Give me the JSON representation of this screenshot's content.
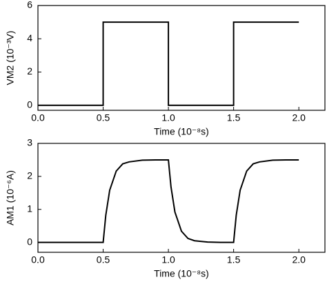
{
  "chart_data": [
    {
      "type": "line",
      "x_label": "Time (10⁻⁸s)",
      "y_label": "VM2 (10⁻³V)",
      "color": "#000000",
      "x": [
        0,
        0.5,
        0.5,
        1.0,
        1.0,
        1.5,
        1.5,
        2.0
      ],
      "values": [
        0,
        0,
        5,
        5,
        0,
        0,
        5,
        5
      ],
      "xlim": [
        0,
        2.2
      ],
      "ylim": [
        -0.3,
        6
      ],
      "xticks": [
        {
          "value": 0,
          "label": "0.0"
        },
        {
          "value": 0.5,
          "label": "0.5"
        },
        {
          "value": 1,
          "label": "1.0"
        },
        {
          "value": 1.5,
          "label": "1.5"
        },
        {
          "value": 2,
          "label": "2.0"
        }
      ],
      "yticks": [
        0,
        2,
        4,
        6
      ]
    },
    {
      "type": "line",
      "x_label": "Time (10⁻⁸s)",
      "y_label": "AM1 (10⁻⁶A)",
      "color": "#000000",
      "x": [
        0,
        0.5,
        0.52,
        0.55,
        0.6,
        0.65,
        0.7,
        0.8,
        0.9,
        1.0,
        1.02,
        1.05,
        1.1,
        1.15,
        1.2,
        1.3,
        1.4,
        1.5,
        1.52,
        1.55,
        1.6,
        1.65,
        1.7,
        1.8,
        1.9,
        2.0
      ],
      "values": [
        0,
        0,
        0.82,
        1.58,
        2.16,
        2.38,
        2.44,
        2.49,
        2.5,
        2.5,
        1.68,
        0.92,
        0.34,
        0.12,
        0.05,
        0.01,
        0,
        0,
        0.82,
        1.58,
        2.16,
        2.38,
        2.44,
        2.49,
        2.5,
        2.5
      ],
      "xlim": [
        0,
        2.2
      ],
      "ylim": [
        -0.3,
        3
      ],
      "xticks": [
        {
          "value": 0,
          "label": "0.0"
        },
        {
          "value": 0.5,
          "label": "0.5"
        },
        {
          "value": 1,
          "label": "1.0"
        },
        {
          "value": 1.5,
          "label": "1.5"
        },
        {
          "value": 2,
          "label": "2.0"
        }
      ],
      "yticks": [
        0,
        1,
        2,
        3
      ]
    }
  ]
}
